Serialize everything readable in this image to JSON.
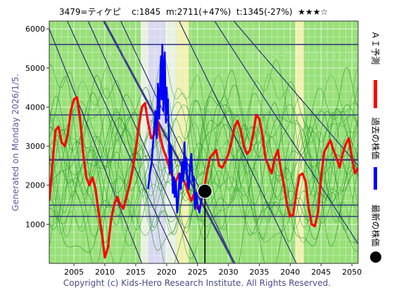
{
  "header": {
    "ticker": "3479=ティケピ",
    "c": "c:1845",
    "m": "m:2711(+47%)",
    "t": "t:1345(-27%)",
    "stars": "★★★☆"
  },
  "side_text": "Generated on Monday 2026/1/5.",
  "legend": {
    "ai_forecast": "ＡＩ予測",
    "past_price": "過去の株価",
    "latest_price": "最新の株価",
    "ai_color": "#ff0000",
    "past_color": "#0000ff",
    "latest_color": "#000000"
  },
  "watermarks": [
    "Kids-Hero",
    "kids-hero.co.jp"
  ],
  "copyright": "Copyright (c) Kids-Hero Research Institute. All Rights Reserved.",
  "chart_data": {
    "type": "line",
    "xlim": [
      2001,
      2051
    ],
    "ylim": [
      0,
      6200
    ],
    "x_ticks": [
      2005,
      2010,
      2015,
      2020,
      2025,
      2030,
      2035,
      2040,
      2045,
      2050
    ],
    "y_ticks": [
      1000,
      2000,
      3000,
      4000,
      5000,
      6000
    ],
    "grid": true,
    "horizontal_levels": [
      1200,
      1490,
      2650,
      3800,
      5600
    ],
    "latest_point": {
      "x": 2026.2,
      "y": 1845
    },
    "past_price": {
      "x": [
        2017.0,
        2017.3,
        2017.6,
        2017.9,
        2018.2,
        2018.4,
        2018.6,
        2018.8,
        2019.0,
        2019.1,
        2019.2,
        2019.3,
        2019.5,
        2019.6,
        2019.7,
        2019.8,
        2019.9,
        2020.0,
        2020.1,
        2020.2,
        2020.4,
        2020.5,
        2020.7,
        2020.9,
        2021.0,
        2021.2,
        2021.3,
        2021.5,
        2021.7,
        2021.9,
        2022.1,
        2022.3,
        2022.5,
        2022.7,
        2022.9,
        2023.0,
        2023.2,
        2023.4,
        2023.6,
        2023.8,
        2024.0,
        2024.2,
        2024.4,
        2024.6,
        2024.8,
        2025.0,
        2025.3,
        2025.6,
        2025.9
      ],
      "y": [
        1900,
        2300,
        2600,
        3300,
        3900,
        3200,
        4600,
        3700,
        4900,
        5300,
        4200,
        5600,
        3900,
        5000,
        5400,
        4300,
        3600,
        4500,
        3800,
        4200,
        3100,
        2300,
        3000,
        2300,
        1800,
        2200,
        1700,
        2100,
        1300,
        1700,
        2300,
        1900,
        2600,
        2100,
        3100,
        2400,
        2700,
        2000,
        1900,
        2500,
        2800,
        2100,
        2200,
        1400,
        1800,
        1500,
        1300,
        1600,
        1850
      ]
    },
    "ai_forecast": {
      "x": [
        2001.0,
        2001.5,
        2002.0,
        2002.5,
        2003.0,
        2003.5,
        2004.0,
        2004.5,
        2005.0,
        2005.5,
        2006.0,
        2006.5,
        2007.0,
        2007.5,
        2008.0,
        2008.5,
        2009.0,
        2009.5,
        2010.0,
        2010.5,
        2011.0,
        2011.5,
        2012.0,
        2012.5,
        2013.0,
        2013.5,
        2014.0,
        2014.5,
        2015.0,
        2015.5,
        2016.0,
        2016.5,
        2017.0,
        2017.5,
        2018.0,
        2018.5,
        2019.0,
        2019.5,
        2020.0,
        2020.5,
        2021.0,
        2021.5,
        2022.0,
        2022.5,
        2023.0,
        2023.5,
        2024.0,
        2024.5,
        2025.0,
        2025.5,
        2026.0,
        2026.5,
        2027.0,
        2027.5,
        2028.0,
        2028.5,
        2029.0,
        2029.5,
        2030.0,
        2030.5,
        2031.0,
        2031.5,
        2032.0,
        2032.5,
        2033.0,
        2033.5,
        2034.0,
        2034.5,
        2035.0,
        2035.5,
        2036.0,
        2036.5,
        2037.0,
        2037.5,
        2038.0,
        2038.5,
        2039.0,
        2039.5,
        2040.0,
        2040.5,
        2041.0,
        2041.5,
        2042.0,
        2042.5,
        2043.0,
        2043.5,
        2044.0,
        2044.5,
        2045.0,
        2045.5,
        2046.0,
        2046.5,
        2047.0,
        2047.5,
        2048.0,
        2048.5,
        2049.0,
        2049.5,
        2050.0,
        2050.5,
        2051.0
      ],
      "y": [
        1600,
        2500,
        3400,
        3500,
        3100,
        3000,
        3300,
        3900,
        4200,
        4250,
        3700,
        2800,
        2200,
        2000,
        2200,
        1900,
        1300,
        800,
        150,
        400,
        1100,
        1500,
        1700,
        1500,
        1400,
        1700,
        2000,
        2400,
        2900,
        3500,
        4000,
        4100,
        3600,
        3200,
        3300,
        3700,
        3200,
        2900,
        2700,
        2400,
        2200,
        2100,
        2300,
        2200,
        2050,
        1800,
        1600,
        1800,
        1400,
        1500,
        1850,
        2300,
        2700,
        2800,
        2900,
        2500,
        2450,
        2600,
        2800,
        3100,
        3500,
        3650,
        3400,
        3000,
        2800,
        2900,
        3300,
        3800,
        3700,
        3300,
        2700,
        2500,
        2300,
        2700,
        2900,
        2400,
        2000,
        1500,
        1200,
        1250,
        1800,
        2250,
        2300,
        2100,
        1400,
        1000,
        950,
        1300,
        2200,
        2850,
        3000,
        3150,
        2900,
        2700,
        2450,
        2800,
        3050,
        3200,
        2700,
        2300,
        2450
      ]
    }
  }
}
